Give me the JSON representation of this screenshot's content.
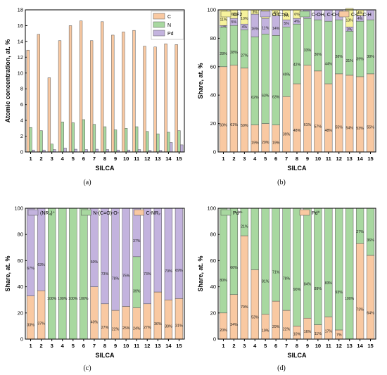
{
  "colors": {
    "C": "#F9C9A2",
    "N": "#A8D8A0",
    "Pd": "#C3B3DE",
    "CF2": "#F6F29C",
    "OCO": "#C3B3DE",
    "COH": "#A8D8A0",
    "CC": "#F9C9A2",
    "NR4": "#C3B3DE",
    "NCOO": "#A8D8A0",
    "CNR2": "#F9C9A2",
    "Pd2": "#A8D8A0",
    "Pd0": "#F9C9A2"
  },
  "chart_data": [
    {
      "id": "a",
      "panel_label": "(a)",
      "type": "bar",
      "xlabel": "SILCA",
      "ylabel": "Atomic concentration, at. %",
      "categories": [
        "1",
        "2",
        "3",
        "4",
        "5",
        "6",
        "7",
        "8",
        "9",
        "10",
        "11",
        "12",
        "13",
        "14",
        "15"
      ],
      "ylim": [
        0,
        18
      ],
      "yticks": [
        0,
        2,
        4,
        6,
        8,
        10,
        12,
        14,
        16,
        18
      ],
      "legend_position": "top-right",
      "series": [
        {
          "name": "C",
          "color_key": "C",
          "values": [
            12.9,
            14.9,
            9.4,
            14.1,
            16.0,
            16.6,
            14.1,
            16.5,
            14.8,
            15.2,
            15.4,
            13.4,
            13.3,
            13.7,
            13.6
          ]
        },
        {
          "name": "N",
          "color_key": "N",
          "values": [
            3.1,
            2.7,
            1.0,
            3.8,
            3.7,
            4.1,
            3.5,
            3.2,
            2.8,
            3.0,
            3.2,
            2.6,
            2.3,
            2.5,
            2.7
          ]
        },
        {
          "name": "Pd",
          "color_key": "Pd",
          "values": [
            0.25,
            0.25,
            0.3,
            0.5,
            0.35,
            0.3,
            0.35,
            0.3,
            0.25,
            0.25,
            0.3,
            0.2,
            0.2,
            1.2,
            0.9
          ]
        }
      ]
    },
    {
      "id": "b",
      "panel_label": "(b)",
      "type": "bar",
      "stacked": true,
      "xlabel": "SILCA",
      "ylabel": "Share, at. %",
      "categories": [
        "1",
        "2",
        "3",
        "4",
        "5",
        "6",
        "7",
        "8",
        "9",
        "10",
        "11",
        "12",
        "13",
        "14",
        "15"
      ],
      "ylim": [
        0,
        100
      ],
      "yticks": [
        0,
        20,
        40,
        60,
        80,
        100
      ],
      "legend_position": "top",
      "series": [
        {
          "name": "C-C, C-H",
          "color_key": "CC",
          "values": [
            60,
            61,
            59,
            19,
            20,
            19,
            39,
            48,
            61,
            57,
            48,
            55,
            54,
            53,
            55
          ],
          "labels": [
            "60%",
            "61%",
            "59%",
            "19%",
            "20%",
            "19%",
            "39%",
            "48%",
            "61%",
            "57%",
            "48%",
            "55%",
            "54%",
            "53%",
            "55%"
          ]
        },
        {
          "name": "C-OH, C-O-C",
          "color_key": "COH",
          "values": [
            28,
            28,
            27,
            62,
            63,
            63,
            49,
            42,
            33,
            36,
            44,
            38,
            31,
            39,
            38
          ],
          "labels": [
            "28%",
            "28%",
            "27%",
            "62%",
            "63%",
            "63%",
            "49%",
            "42%",
            "33%",
            "36%",
            "44%",
            "38%",
            "31%",
            "39%",
            "38%"
          ]
        },
        {
          "name": "O-C=O",
          "color_key": "OCO",
          "values": [
            1,
            5,
            4,
            16,
            11,
            14,
            5,
            4,
            6,
            7,
            8,
            7,
            3,
            4,
            7
          ],
          "labels": [
            "1%",
            "5%",
            "4%",
            "16%",
            "11%",
            "14%",
            "5%",
            "4%",
            "",
            "",
            "",
            "",
            "3%",
            "4%",
            ""
          ]
        },
        {
          "name": "CF2",
          "color_key": "CF2",
          "values": [
            11,
            6,
            10,
            3,
            6,
            4,
            7,
            6,
            0,
            0,
            0,
            0,
            13,
            4,
            0
          ],
          "labels": [
            "11%",
            "6%",
            "10%",
            "3%",
            "6%",
            "4%",
            "7%",
            "6%",
            "",
            "",
            "",
            "",
            "13%",
            "4%",
            ""
          ]
        }
      ],
      "legend_order": [
        "CF2",
        "O-C=O",
        "C-OH, C-O-C",
        "C-C, C-H"
      ]
    },
    {
      "id": "c",
      "panel_label": "(c)",
      "type": "bar",
      "stacked": true,
      "xlabel": "SILCA",
      "ylabel": "Share, at. %",
      "categories": [
        "1",
        "2",
        "3",
        "4",
        "5",
        "6",
        "7",
        "8",
        "9",
        "10",
        "11",
        "12",
        "13",
        "14",
        "15"
      ],
      "ylim": [
        0,
        100
      ],
      "yticks": [
        0,
        20,
        40,
        60,
        80,
        100
      ],
      "legend_position": "top",
      "series": [
        {
          "name": "C-NR₂",
          "color_key": "CNR2",
          "values": [
            33,
            37,
            0,
            0,
            0,
            0,
            40,
            27,
            22,
            25,
            24,
            27,
            36,
            30,
            31
          ],
          "labels": [
            "33%",
            "37%",
            "",
            "",
            "",
            "",
            "40%",
            "27%",
            "22%",
            "25%",
            "24%",
            "27%",
            "36%",
            "30%",
            "31%"
          ]
        },
        {
          "name": "N-(C=O)-O-",
          "color_key": "NCOO",
          "values": [
            0,
            0,
            100,
            100,
            100,
            100,
            0,
            0,
            0,
            0,
            39,
            0,
            0,
            0,
            0
          ],
          "labels": [
            "",
            "",
            "100%",
            "100%",
            "100%",
            "100%",
            "",
            "",
            "",
            "",
            "39%",
            "",
            "",
            "",
            ""
          ]
        },
        {
          "name": "(NR₄)⁺",
          "color_key": "NR4",
          "values": [
            67,
            63,
            0,
            0,
            0,
            0,
            60,
            73,
            78,
            75,
            37,
            73,
            64,
            70,
            69
          ],
          "labels": [
            "67%",
            "63%",
            "",
            "",
            "",
            "",
            "60%",
            "73%",
            "78%",
            "75%",
            "37%",
            "73%",
            "",
            "70%",
            "69%"
          ]
        }
      ],
      "legend_order": [
        "(NR₄)⁺",
        "N-(C=O)-O-",
        "C-NR₂"
      ]
    },
    {
      "id": "d",
      "panel_label": "(d)",
      "type": "bar",
      "stacked": true,
      "xlabel": "SILCA",
      "ylabel": "Share, at. %",
      "categories": [
        "1",
        "2",
        "3",
        "4",
        "5",
        "6",
        "7",
        "8",
        "9",
        "10",
        "11",
        "12",
        "13",
        "14",
        "15"
      ],
      "ylim": [
        0,
        100
      ],
      "yticks": [
        0,
        20,
        40,
        60,
        80,
        100
      ],
      "legend_position": "top",
      "series": [
        {
          "name": "Pd⁰",
          "color_key": "Pd0",
          "values": [
            20,
            34,
            79,
            53,
            19,
            29,
            22,
            10,
            16,
            11,
            17,
            7,
            0,
            73,
            64
          ],
          "labels": [
            "20%",
            "34%",
            "79%",
            "53%",
            "19%",
            "29%",
            "22%",
            "10%",
            "16%",
            "11%",
            "17%",
            "7%",
            "",
            "73%",
            "64%"
          ]
        },
        {
          "name": "Pd²⁺",
          "color_key": "Pd2",
          "values": [
            80,
            66,
            21,
            47,
            81,
            71,
            78,
            90,
            84,
            89,
            83,
            93,
            100,
            27,
            36
          ],
          "labels": [
            "80%",
            "66%",
            "21%",
            "",
            "81%",
            "71%",
            "78%",
            "90%",
            "84%",
            "89%",
            "83%",
            "93%",
            "100%",
            "27%",
            "36%"
          ]
        }
      ],
      "legend_order": [
        "Pd²⁺",
        "Pd⁰"
      ]
    }
  ]
}
